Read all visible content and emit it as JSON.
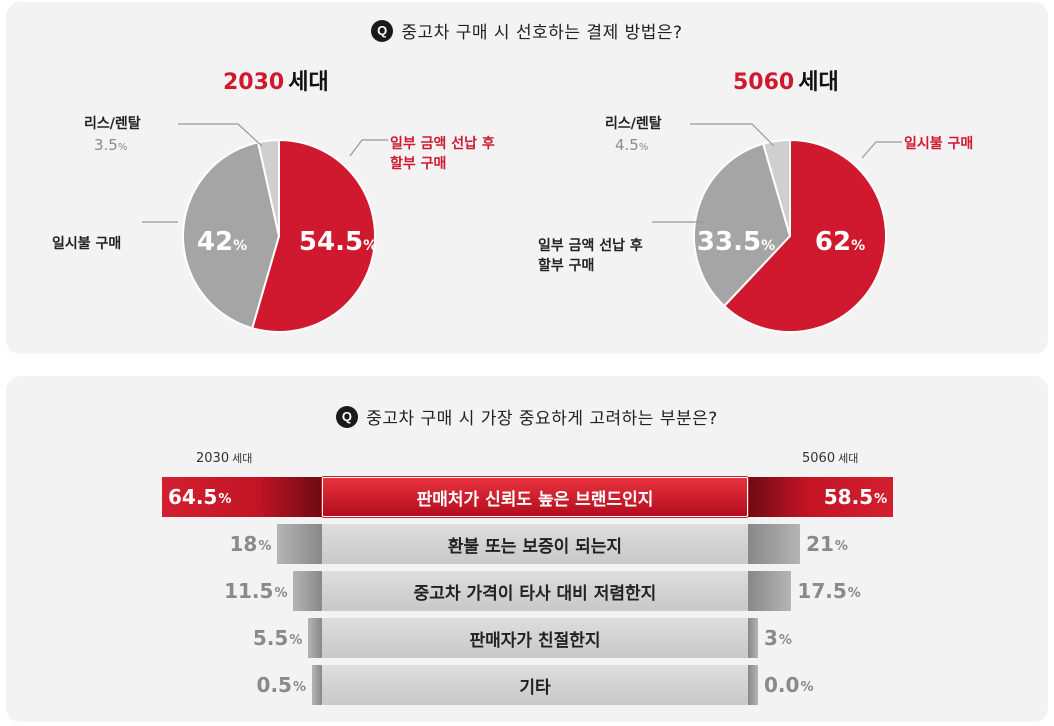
{
  "top": {
    "question": "중고차 구매 시 선호하는 결제 방법은?",
    "q_badge": "Q",
    "gen_a": {
      "num": "2030",
      "suffix": "세대"
    },
    "gen_b": {
      "num": "5060",
      "suffix": "세대"
    }
  },
  "bottom": {
    "question": "중고차 구매 시 가장 중요하게 고려하는 부분은?",
    "q_badge": "Q",
    "gen_a_label": "2030",
    "gen_b_label": "5060",
    "gen_suffix": "세대",
    "unit": "%"
  },
  "colors": {
    "accent_red": "#d0192e",
    "dark_grey": "#a5a5a5",
    "light_grey": "#cfcfcf"
  },
  "chart_data": [
    {
      "type": "pie",
      "title": "2030 세대",
      "unit": "%",
      "slices": [
        {
          "label": "일부 금액 선납 후 할부 구매",
          "label_lines": [
            "일부 금액 선납 후",
            "할부 구매"
          ],
          "value": 54.5,
          "value_text": "54.5",
          "color": "#d0192e",
          "label_color": "#d0192e"
        },
        {
          "label": "일시불 구매",
          "label_lines": [
            "일시불 구매"
          ],
          "value": 42,
          "value_text": "42",
          "color": "#a5a5a5",
          "label_color": "#222222"
        },
        {
          "label": "리스/렌탈",
          "label_lines": [
            "리스/렌탈"
          ],
          "value": 3.5,
          "value_text": "3.5",
          "color": "#cfcfcf",
          "label_color": "#222222"
        }
      ]
    },
    {
      "type": "pie",
      "title": "5060 세대",
      "unit": "%",
      "slices": [
        {
          "label": "일시불 구매",
          "label_lines": [
            "일시불 구매"
          ],
          "value": 62,
          "value_text": "62",
          "color": "#d0192e",
          "label_color": "#d0192e"
        },
        {
          "label": "일부 금액 선납 후 할부 구매",
          "label_lines": [
            "일부 금액 선납 후",
            "할부 구매"
          ],
          "value": 33.5,
          "value_text": "33.5",
          "color": "#a5a5a5",
          "label_color": "#222222"
        },
        {
          "label": "리스/렌탈",
          "label_lines": [
            "리스/렌탈"
          ],
          "value": 4.5,
          "value_text": "4.5",
          "color": "#cfcfcf",
          "label_color": "#222222"
        }
      ]
    },
    {
      "type": "bar",
      "orientation": "horizontal-butterfly",
      "unit": "%",
      "categories": [
        "판매처가 신뢰도 높은 브랜드인지",
        "환불 또는 보증이 되는지",
        "중고차 가격이 타사 대비 저렴한지",
        "판매자가 친절한지",
        "기타"
      ],
      "series": [
        {
          "name": "2030 세대",
          "values": [
            64.5,
            18,
            11.5,
            5.5,
            0.5
          ],
          "labels": [
            "64.5",
            "18",
            "11.5",
            "5.5",
            "0.5"
          ]
        },
        {
          "name": "5060 세대",
          "values": [
            58.5,
            21,
            17.5,
            3,
            0.0
          ],
          "labels": [
            "58.5",
            "21",
            "17.5",
            "3",
            "0.0"
          ]
        }
      ]
    }
  ]
}
